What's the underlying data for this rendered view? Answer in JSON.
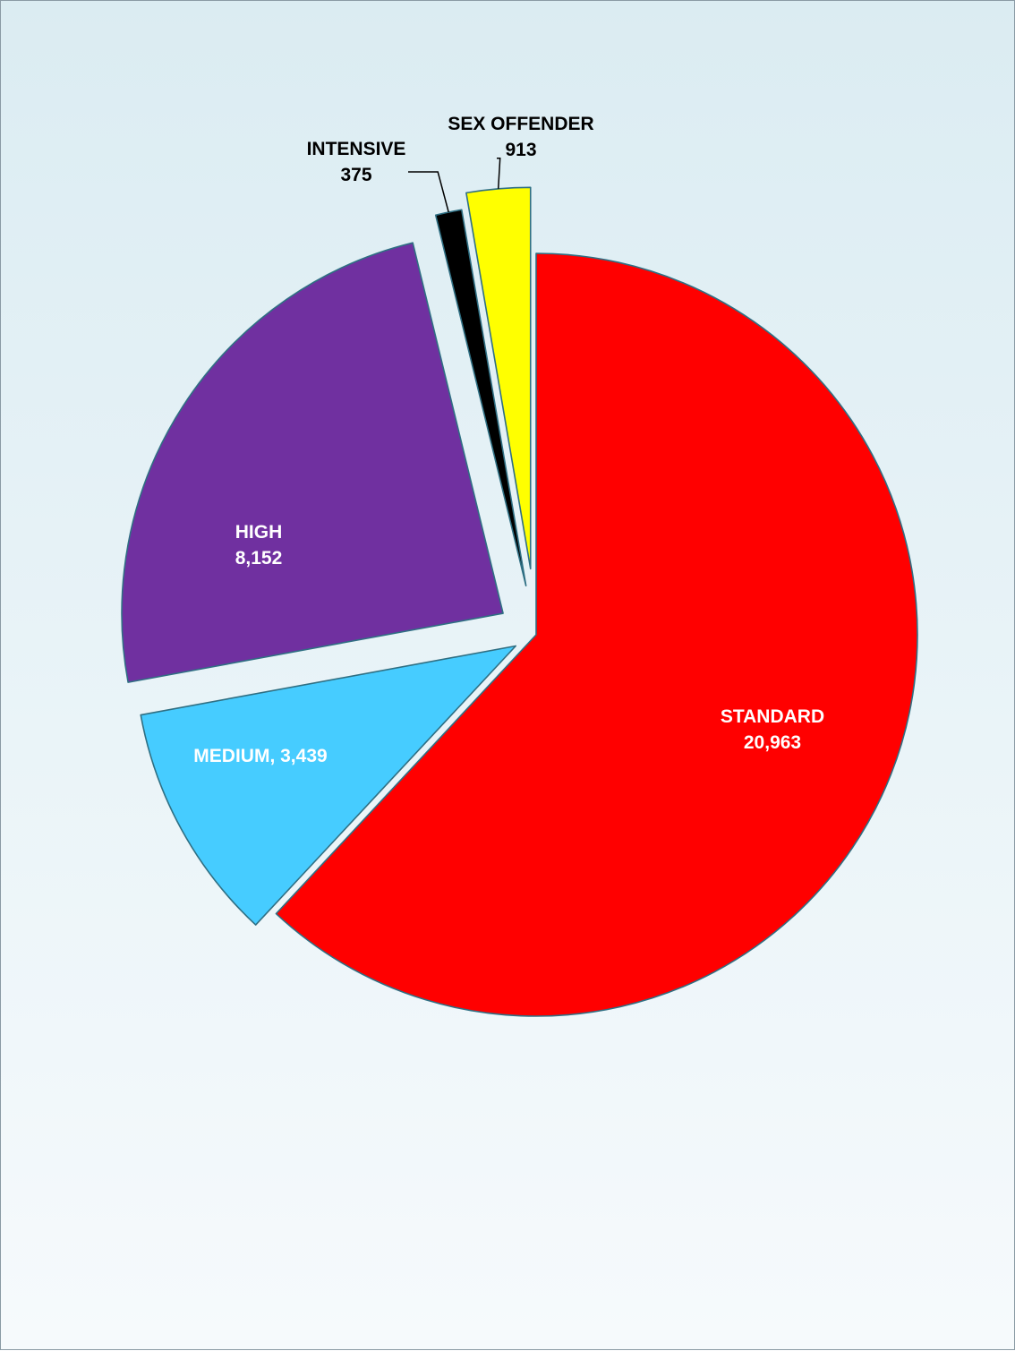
{
  "chart_data": {
    "type": "pie",
    "slices": [
      {
        "label": "STANDARD",
        "value": 20963,
        "value_text": "20,963",
        "color": "#ff0000",
        "label_color": "#ffffff"
      },
      {
        "label": "MEDIUM",
        "value": 3439,
        "value_text": "3,439",
        "color": "#46ccff",
        "label_color": "#ffffff"
      },
      {
        "label": "HIGH",
        "value": 8152,
        "value_text": "8,152",
        "color": "#7030a0",
        "label_color": "#ffffff"
      },
      {
        "label": "INTENSIVE",
        "value": 375,
        "value_text": "375",
        "color": "#000000",
        "label_color": "#000000"
      },
      {
        "label": "SEX OFFENDER",
        "value": 913,
        "value_text": "913",
        "color": "#ffff00",
        "label_color": "#000000"
      }
    ],
    "exploded": [
      "MEDIUM",
      "HIGH",
      "INTENSIVE",
      "SEX OFFENDER"
    ],
    "start": "12 o'clock",
    "direction": "clockwise",
    "legend": "none",
    "title": ""
  }
}
